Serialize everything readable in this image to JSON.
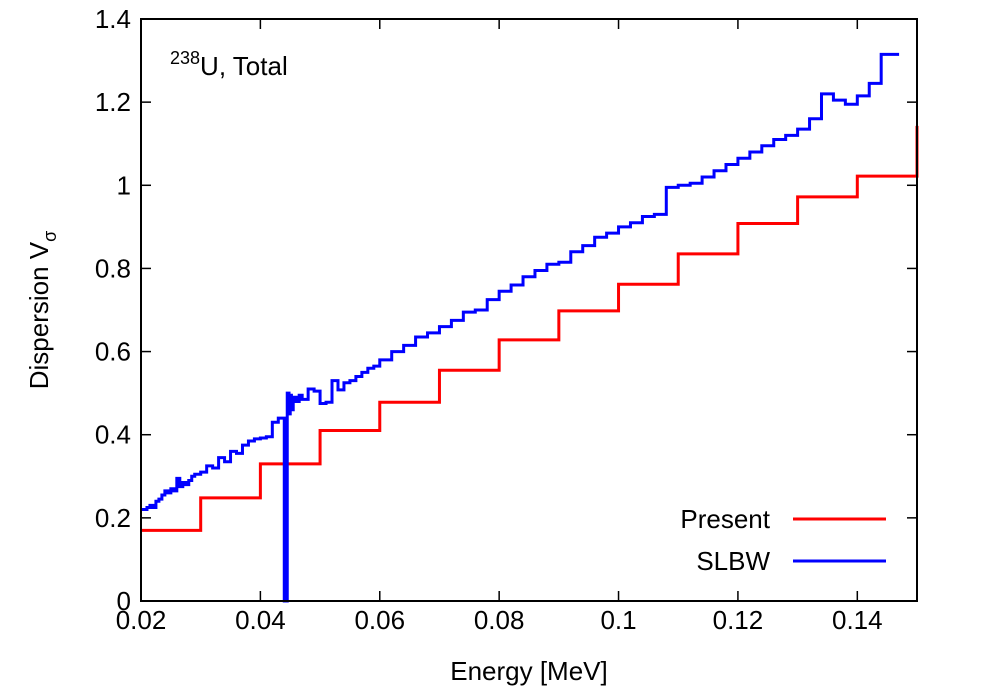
{
  "chart_data": {
    "type": "line",
    "xlabel": "Energy [MeV]",
    "ylabel_main": "Dispersion V",
    "ylabel_sub": "σ",
    "annotation": {
      "sup": "238",
      "text": "U, Total"
    },
    "xlim": [
      0.02,
      0.15
    ],
    "ylim": [
      0,
      1.4
    ],
    "xticks": [
      0.02,
      0.04,
      0.06,
      0.08,
      0.1,
      0.12,
      0.14
    ],
    "xtick_labels": [
      "0.02",
      "0.04",
      "0.06",
      "0.08",
      "0.1",
      "0.12",
      "0.14"
    ],
    "yticks": [
      0,
      0.2,
      0.4,
      0.6,
      0.8,
      1.0,
      1.2,
      1.4
    ],
    "ytick_labels": [
      "0",
      "0.2",
      "0.4",
      "0.6",
      "0.8",
      "1",
      "1.2",
      "1.4"
    ],
    "legend_position": "bottom-right",
    "series": [
      {
        "name": "Present",
        "color": "#ff0000",
        "step": true,
        "x": [
          0.02,
          0.03,
          0.04,
          0.05,
          0.06,
          0.07,
          0.08,
          0.09,
          0.1,
          0.11,
          0.12,
          0.13,
          0.14,
          0.15
        ],
        "y": [
          0.17,
          0.248,
          0.33,
          0.41,
          0.478,
          0.555,
          0.628,
          0.698,
          0.762,
          0.835,
          0.908,
          0.972,
          1.022,
          1.143
        ]
      },
      {
        "name": "SLBW",
        "color": "#0000ff",
        "step": true,
        "x": [
          0.02,
          0.021,
          0.0215,
          0.022,
          0.0225,
          0.023,
          0.0235,
          0.024,
          0.0245,
          0.025,
          0.0255,
          0.026,
          0.0265,
          0.027,
          0.0275,
          0.028,
          0.0285,
          0.029,
          0.03,
          0.031,
          0.032,
          0.033,
          0.034,
          0.035,
          0.036,
          0.037,
          0.038,
          0.039,
          0.04,
          0.041,
          0.042,
          0.043,
          0.044,
          0.0445,
          0.0448,
          0.045,
          0.0452,
          0.0455,
          0.046,
          0.0465,
          0.047,
          0.048,
          0.049,
          0.05,
          0.051,
          0.052,
          0.053,
          0.054,
          0.055,
          0.056,
          0.057,
          0.058,
          0.059,
          0.06,
          0.062,
          0.064,
          0.066,
          0.068,
          0.07,
          0.072,
          0.074,
          0.076,
          0.078,
          0.08,
          0.082,
          0.084,
          0.086,
          0.088,
          0.09,
          0.092,
          0.094,
          0.096,
          0.098,
          0.1,
          0.102,
          0.104,
          0.106,
          0.108,
          0.11,
          0.112,
          0.114,
          0.116,
          0.118,
          0.12,
          0.122,
          0.124,
          0.126,
          0.128,
          0.13,
          0.132,
          0.134,
          0.136,
          0.138,
          0.14,
          0.142,
          0.144,
          0.146,
          0.147
        ],
        "y": [
          0.22,
          0.225,
          0.23,
          0.225,
          0.24,
          0.245,
          0.255,
          0.265,
          0.26,
          0.27,
          0.265,
          0.295,
          0.275,
          0.285,
          0.28,
          0.29,
          0.3,
          0.305,
          0.31,
          0.325,
          0.32,
          0.345,
          0.335,
          0.36,
          0.355,
          0.375,
          0.385,
          0.39,
          0.392,
          0.395,
          0.43,
          0.44,
          0.0,
          0.5,
          0.45,
          0.495,
          0.46,
          0.49,
          0.48,
          0.495,
          0.485,
          0.51,
          0.505,
          0.475,
          0.478,
          0.53,
          0.508,
          0.525,
          0.53,
          0.54,
          0.55,
          0.56,
          0.565,
          0.58,
          0.6,
          0.615,
          0.635,
          0.645,
          0.66,
          0.675,
          0.695,
          0.7,
          0.725,
          0.745,
          0.76,
          0.78,
          0.795,
          0.81,
          0.815,
          0.84,
          0.855,
          0.875,
          0.885,
          0.9,
          0.91,
          0.925,
          0.93,
          0.995,
          1.0,
          1.005,
          1.02,
          1.035,
          1.05,
          1.065,
          1.08,
          1.095,
          1.11,
          1.12,
          1.135,
          1.16,
          1.22,
          1.205,
          1.195,
          1.215,
          1.245,
          1.315,
          1.315,
          1.315
        ]
      }
    ]
  }
}
